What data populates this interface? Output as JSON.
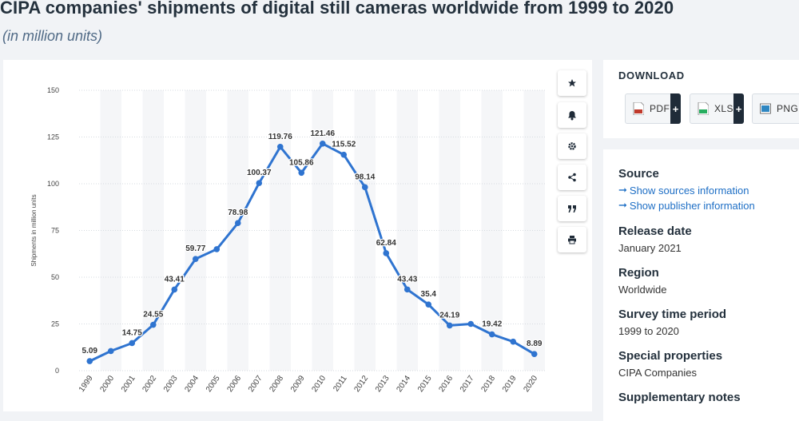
{
  "header": {
    "title": "CIPA companies' shipments of digital still cameras worldwide from 1999 to 2020",
    "subtitle": "(in million units)"
  },
  "download": {
    "title": "DOWNLOAD",
    "buttons": [
      {
        "label": "PDF",
        "plus": "+",
        "color": "#c0392b"
      },
      {
        "label": "XLS",
        "plus": "+",
        "color": "#27ae60"
      },
      {
        "label": "PNG",
        "plus": "",
        "color": "#2e86c1"
      }
    ]
  },
  "info": {
    "source_label": "Source",
    "source_link": "Show sources information",
    "publisher_link": "Show publisher information",
    "release_label": "Release date",
    "release_value": "January 2021",
    "region_label": "Region",
    "region_value": "Worldwide",
    "survey_label": "Survey time period",
    "survey_value": "1999 to 2020",
    "special_label": "Special properties",
    "special_value": "CIPA Companies",
    "supp_label": "Supplementary notes"
  },
  "toolbar": {
    "icons": [
      "star-icon",
      "bell-icon",
      "gear-icon",
      "share-icon",
      "quote-icon",
      "print-icon"
    ]
  },
  "colors": {
    "line": "#2f74d0",
    "title": "#24313d",
    "link": "#1d6ec5"
  },
  "chart_data": {
    "type": "line",
    "title": "",
    "xlabel": "",
    "ylabel": "Shipments in million units",
    "ylim": [
      0,
      150
    ],
    "yticks": [
      0,
      25,
      50,
      75,
      100,
      125,
      150
    ],
    "grid": true,
    "categories": [
      "1999",
      "2000",
      "2001",
      "2002",
      "2003",
      "2004",
      "2005",
      "2006",
      "2007",
      "2008",
      "2009",
      "2010",
      "2011",
      "2012",
      "2013",
      "2014",
      "2015",
      "2016",
      "2017",
      "2018",
      "2019",
      "2020"
    ],
    "series": [
      {
        "values": [
          5.09,
          10.5,
          14.75,
          24.55,
          43.41,
          59.77,
          65.0,
          78.98,
          100.37,
          119.76,
          105.86,
          121.46,
          115.52,
          98.14,
          62.84,
          43.43,
          35.4,
          24.19,
          25.0,
          19.42,
          15.5,
          8.89
        ],
        "labels": [
          "5.09",
          "",
          "14.75",
          "24.55",
          "43.41",
          "59.77",
          "",
          "78.98",
          "100.37",
          "119.76",
          "105.86",
          "121.46",
          "115.52",
          "98.14",
          "62.84",
          "43.43",
          "35.4",
          "24.19",
          "",
          "19.42",
          "",
          "8.89"
        ]
      }
    ]
  }
}
